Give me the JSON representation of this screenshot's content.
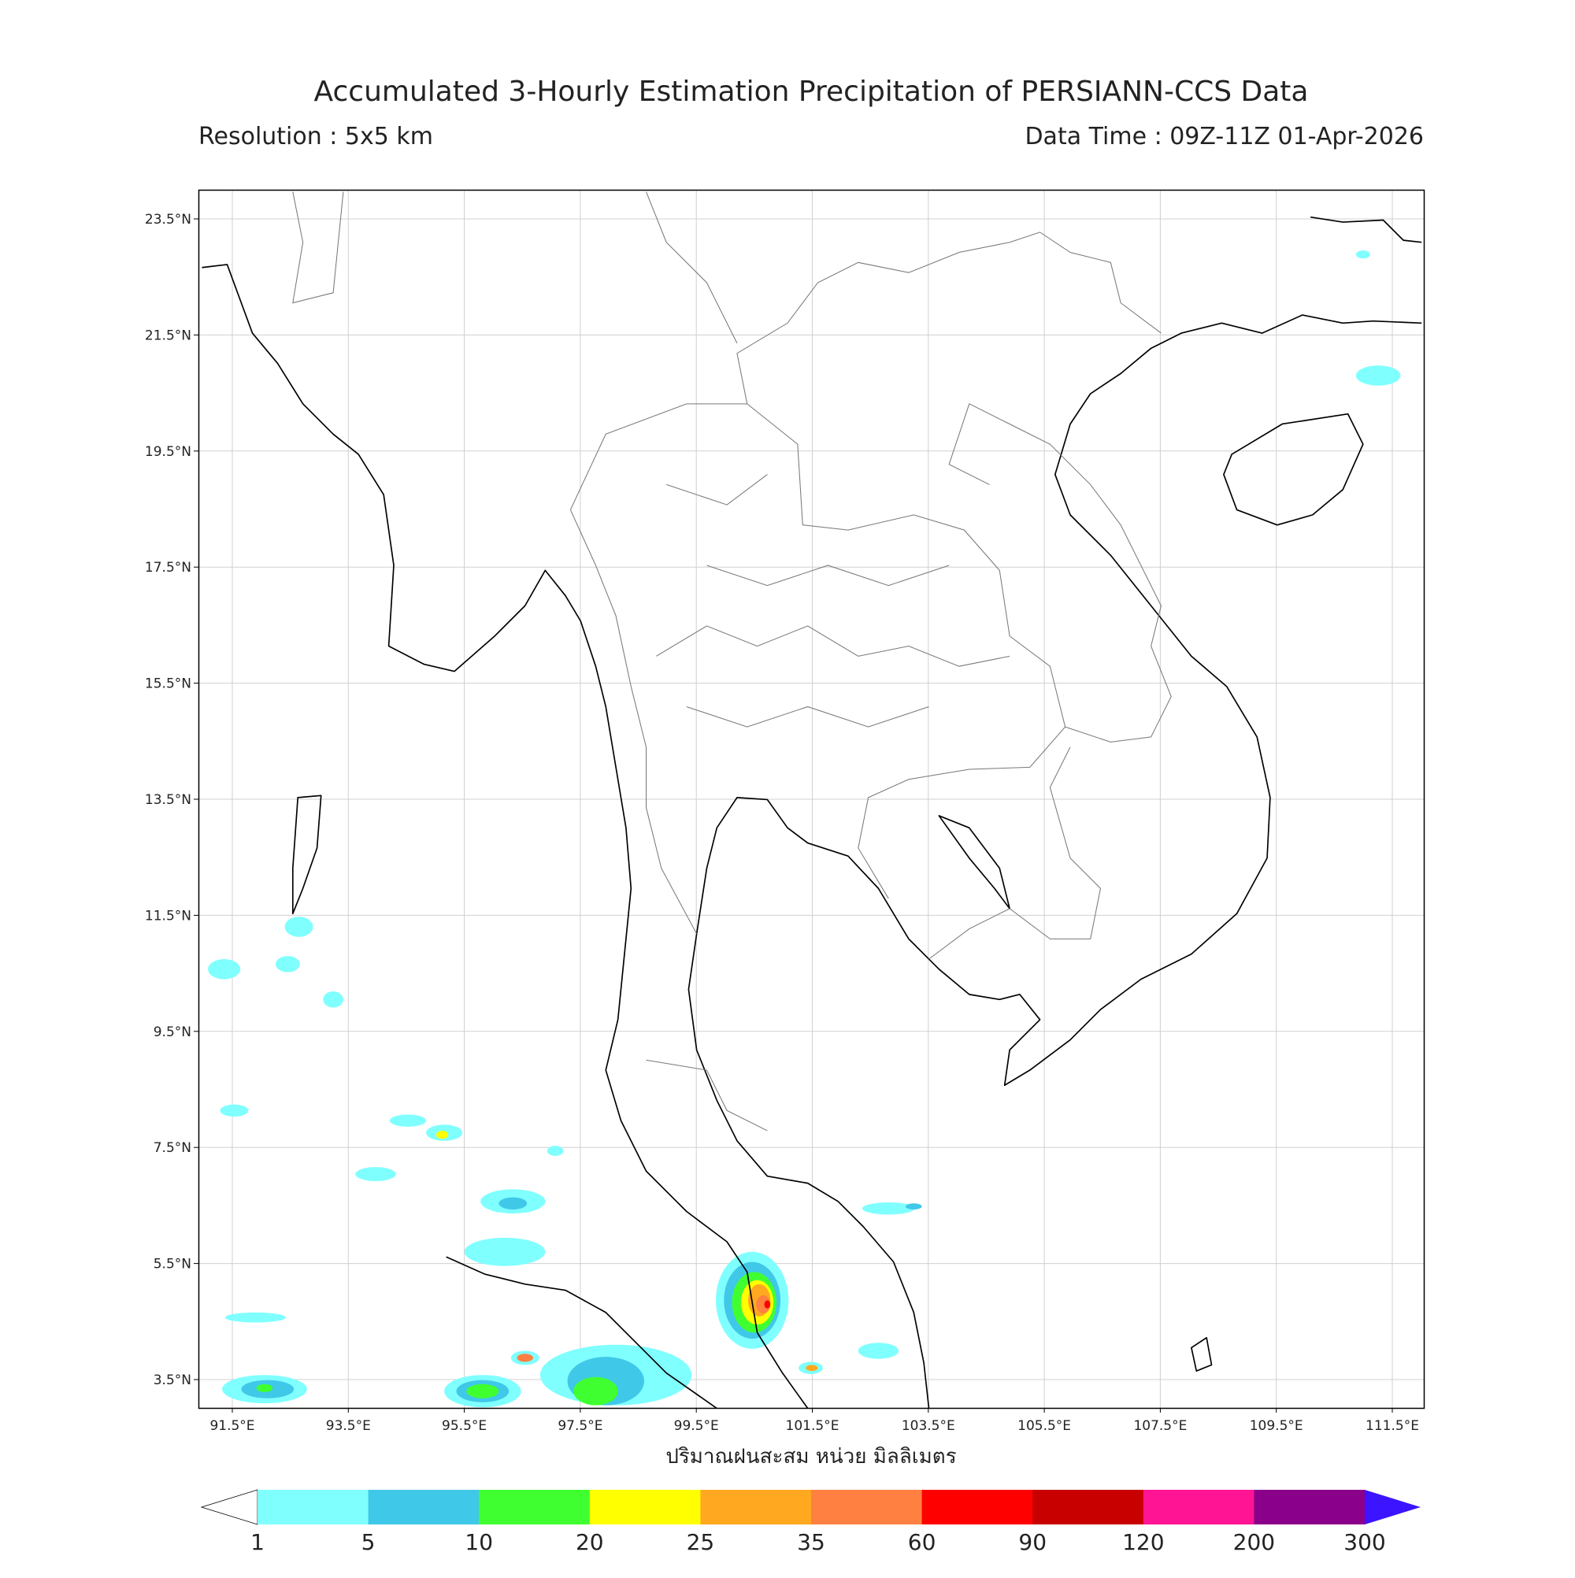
{
  "header": {
    "title": "Accumulated 3-Hourly Estimation Precipitation of PERSIANN-CCS Data",
    "resolution": "Resolution : 5x5 km",
    "data_time": "Data Time : 09Z-11Z 01-Apr-2026"
  },
  "map": {
    "lat_labels": [
      "23.5°N",
      "21.5°N",
      "19.5°N",
      "17.5°N",
      "15.5°N",
      "13.5°N",
      "11.5°N",
      "9.5°N",
      "7.5°N",
      "5.5°N",
      "3.5°N"
    ],
    "lon_labels": [
      "91.5°E",
      "93.5°E",
      "95.5°E",
      "97.5°E",
      "99.5°E",
      "101.5°E",
      "103.5°E",
      "105.5°E",
      "107.5°E",
      "109.5°E",
      "111.5°E"
    ],
    "axis_label": "ปริมาณฝนสะสม หน่วย มิลลิเมตร"
  },
  "colorbar": {
    "bounds": [
      1,
      5,
      10,
      20,
      25,
      35,
      60,
      90,
      120,
      200,
      300
    ],
    "colors": [
      "#80ffff",
      "#40c8e8",
      "#40ff30",
      "#ffff00",
      "#ffa820",
      "#ff8040",
      "#ff0000",
      "#c80000",
      "#ff1493",
      "#8b008b"
    ],
    "under_color": "#ffffff",
    "over_color": "#3c14ff"
  }
}
